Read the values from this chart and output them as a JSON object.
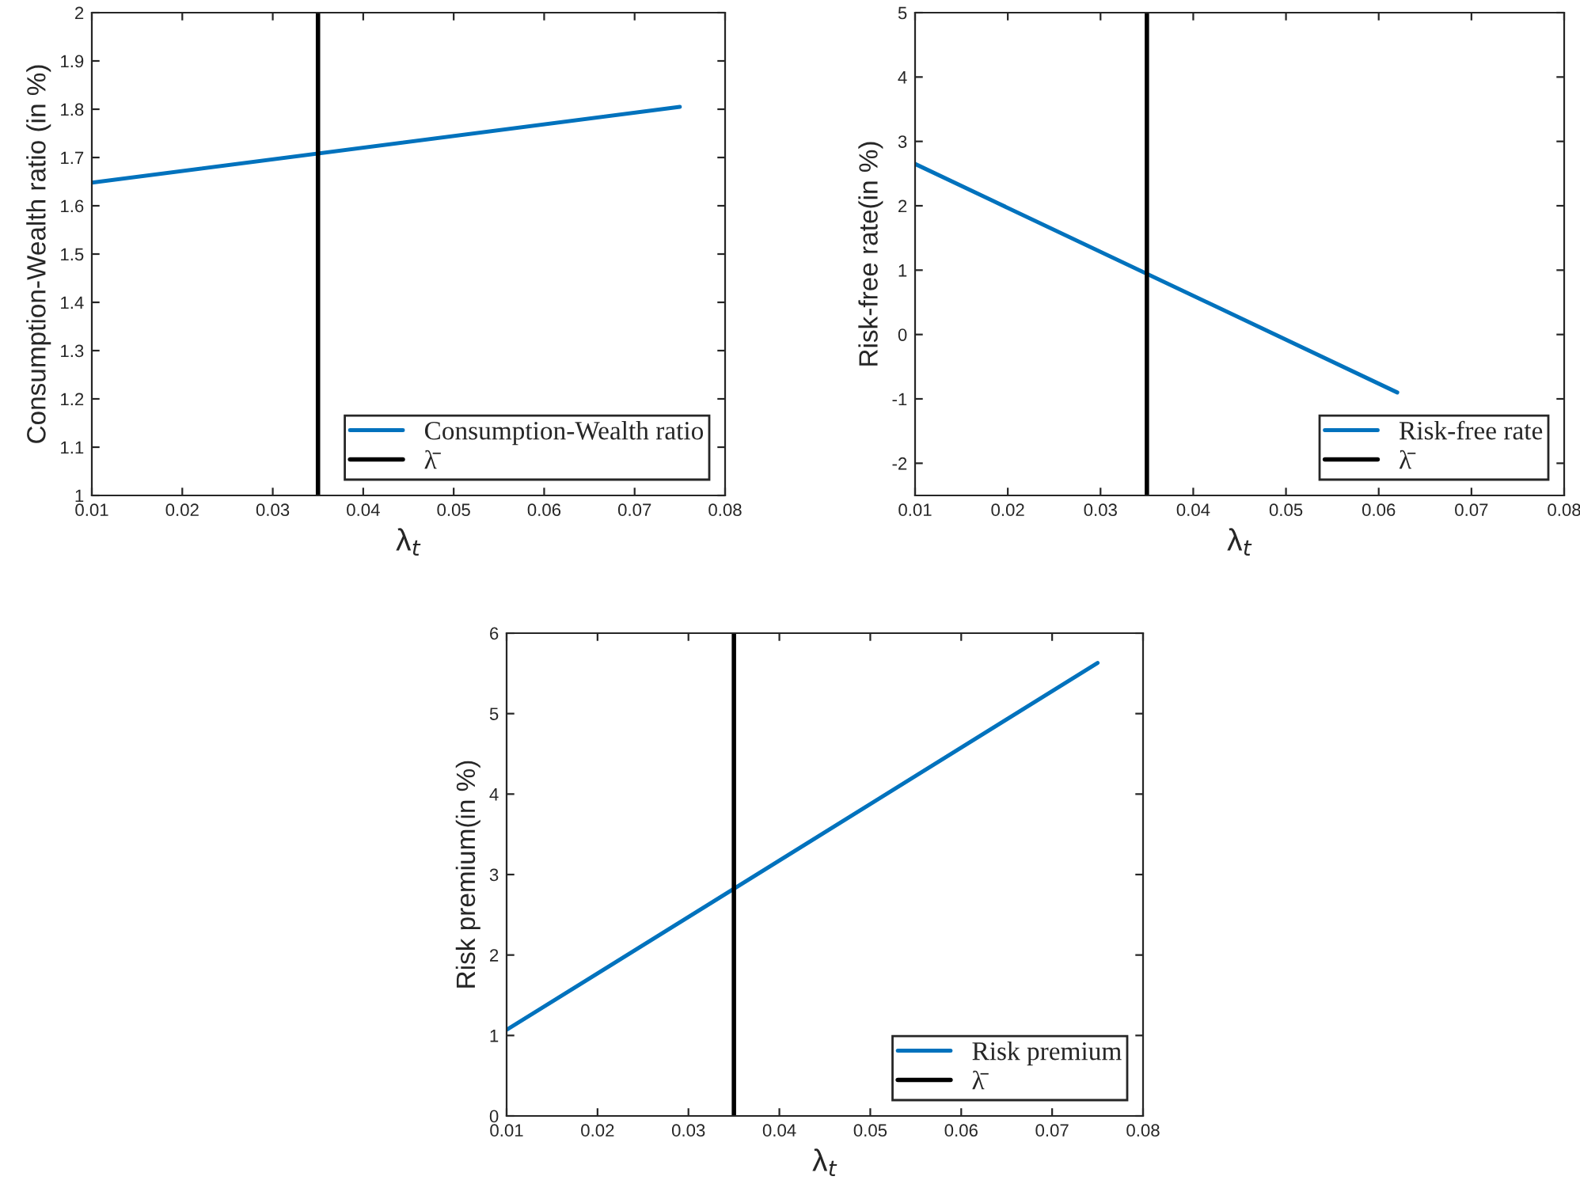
{
  "chart_data": [
    {
      "type": "line",
      "xlabel": "λ$_{t}$",
      "ylabel": "Consumption-Wealth ratio (in %)",
      "xlim": [
        0.01,
        0.08
      ],
      "xticks": [
        0.01,
        0.02,
        0.03,
        0.04,
        0.05,
        0.06,
        0.07,
        0.08
      ],
      "ylim": [
        1,
        2
      ],
      "yticks": [
        1,
        1.1,
        1.2,
        1.3,
        1.4,
        1.5,
        1.6,
        1.7,
        1.8,
        1.9,
        2
      ],
      "grid": false,
      "legend": "bottom right",
      "series": [
        {
          "name": "Consumption-Wealth ratio",
          "color": "#0072bd",
          "x": [
            0.01,
            0.075
          ],
          "values": [
            1.648,
            1.805
          ]
        }
      ],
      "ref_lines": [
        {
          "axis": "x",
          "value": 0.035,
          "label": "λ̄",
          "color": "#000000"
        }
      ]
    },
    {
      "type": "line",
      "xlabel": "λ$_{t}$",
      "ylabel": "Risk-free rate(in %)",
      "xlim": [
        0.01,
        0.08
      ],
      "xticks": [
        0.01,
        0.02,
        0.03,
        0.04,
        0.05,
        0.06,
        0.07,
        0.08
      ],
      "ylim": [
        -2.5,
        5
      ],
      "yticks": [
        -2,
        -1,
        0,
        1,
        2,
        3,
        4,
        5
      ],
      "grid": false,
      "legend": "bottom right",
      "series": [
        {
          "name": "Risk-free rate",
          "color": "#0072bd",
          "x": [
            0.01,
            0.062
          ],
          "values": [
            2.65,
            -0.9
          ]
        }
      ],
      "ref_lines": [
        {
          "axis": "x",
          "value": 0.035,
          "label": "λ̄",
          "color": "#000000"
        }
      ]
    },
    {
      "type": "line",
      "xlabel": "λ$_{t}$",
      "ylabel": "Risk premium(in %)",
      "xlim": [
        0.01,
        0.08
      ],
      "xticks": [
        0.01,
        0.02,
        0.03,
        0.04,
        0.05,
        0.06,
        0.07,
        0.08
      ],
      "ylim": [
        0,
        6
      ],
      "yticks": [
        0,
        1,
        2,
        3,
        4,
        5,
        6
      ],
      "grid": false,
      "legend": "bottom right",
      "series": [
        {
          "name": "Risk premium",
          "color": "#0072bd",
          "x": [
            0.01,
            0.075
          ],
          "values": [
            1.07,
            5.63
          ]
        }
      ],
      "ref_lines": [
        {
          "axis": "x",
          "value": 0.035,
          "label": "λ̄",
          "color": "#000000"
        }
      ]
    }
  ]
}
